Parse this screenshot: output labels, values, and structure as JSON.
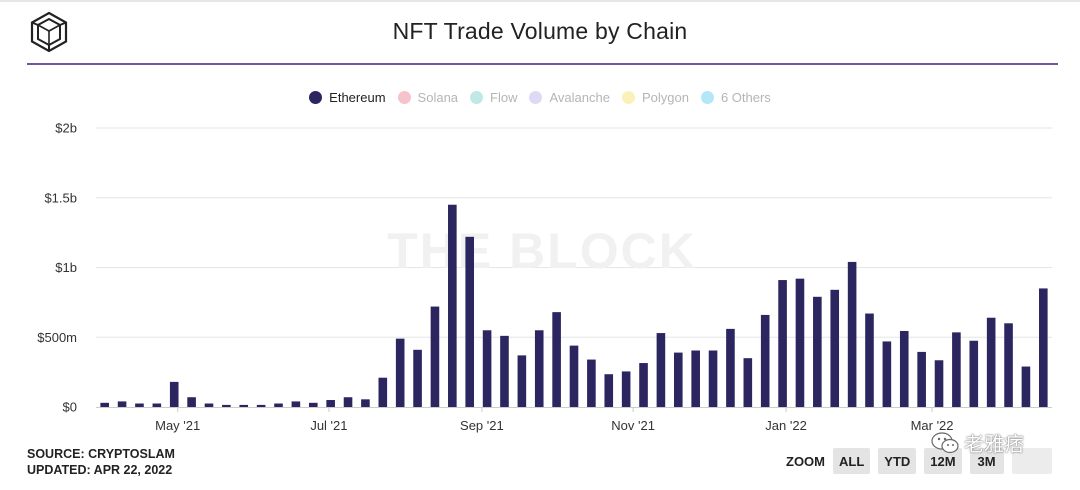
{
  "title": "NFT Trade Volume by Chain",
  "watermark_text": "THE BLOCK",
  "legend": [
    {
      "label": "Ethereum",
      "color": "#2b2560",
      "active": true
    },
    {
      "label": "Solana",
      "color": "#f6c2cb",
      "active": false
    },
    {
      "label": "Flow",
      "color": "#bfe8e6",
      "active": false
    },
    {
      "label": "Avalanche",
      "color": "#dedaf5",
      "active": false
    },
    {
      "label": "Polygon",
      "color": "#fbf1b8",
      "active": false
    },
    {
      "label": "6 Others",
      "color": "#b3e6f7",
      "active": false
    }
  ],
  "footer": {
    "source": "SOURCE: CRYPTOSLAM",
    "updated": "UPDATED: APR 22, 2022"
  },
  "zoom": {
    "label": "ZOOM",
    "buttons": [
      "ALL",
      "YTD",
      "12M",
      "3M",
      ""
    ]
  },
  "wechat_watermark": "老雅痞",
  "chart_data": {
    "type": "bar",
    "title": "NFT Trade Volume by Chain",
    "series": [
      {
        "name": "Ethereum",
        "color": "#2b2560",
        "values": [
          0.03,
          0.04,
          0.025,
          0.025,
          0.18,
          0.07,
          0.025,
          0.015,
          0.015,
          0.015,
          0.025,
          0.04,
          0.03,
          0.05,
          0.07,
          0.055,
          0.21,
          0.49,
          0.41,
          0.72,
          1.45,
          1.22,
          0.55,
          0.51,
          0.37,
          0.55,
          0.68,
          0.44,
          0.34,
          0.235,
          0.255,
          0.315,
          0.53,
          0.39,
          0.405,
          0.405,
          0.56,
          0.35,
          0.66,
          0.91,
          0.92,
          0.79,
          0.84,
          1.04,
          0.67,
          0.47,
          0.545,
          0.395,
          0.335,
          0.535,
          0.475,
          0.64,
          0.6,
          0.29,
          0.85
        ]
      }
    ],
    "x_tick_labels": [
      {
        "label": "May '21",
        "index": 4.2
      },
      {
        "label": "Jul '21",
        "index": 12.9
      },
      {
        "label": "Sep '21",
        "index": 21.7
      },
      {
        "label": "Nov '21",
        "index": 30.4
      },
      {
        "label": "Jan '22",
        "index": 39.2
      },
      {
        "label": "Mar '22",
        "index": 47.6
      }
    ],
    "y_ticks": [
      {
        "value": 0,
        "label": "$0"
      },
      {
        "value": 0.5,
        "label": "$500m"
      },
      {
        "value": 1,
        "label": "$1b"
      },
      {
        "value": 1.5,
        "label": "$1.5b"
      },
      {
        "value": 2,
        "label": "$2b"
      }
    ],
    "ylim": [
      0,
      2
    ],
    "yunit": "billions USD",
    "xlabel": "",
    "ylabel": "",
    "grid": true,
    "legend_position": "top-center"
  }
}
